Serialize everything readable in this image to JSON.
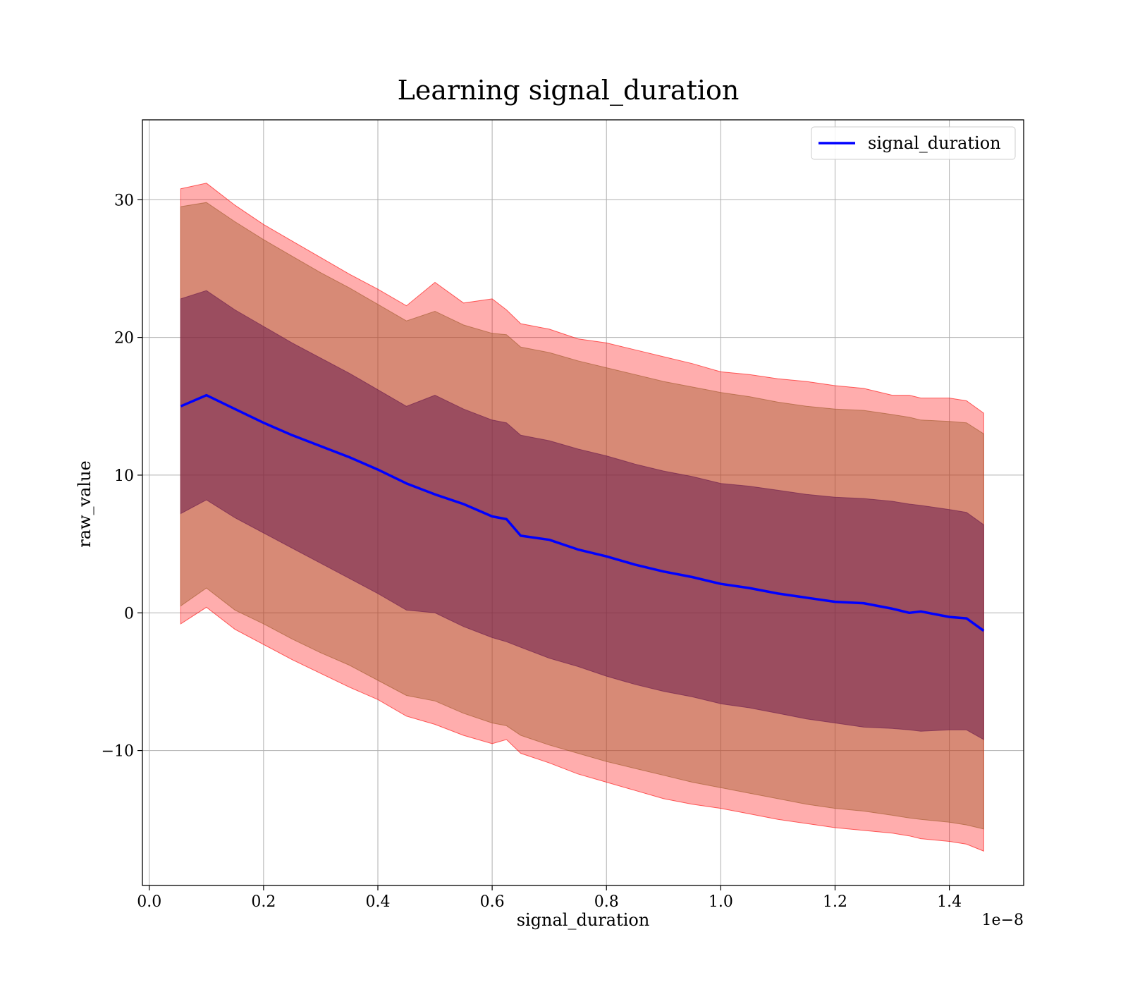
{
  "chart_data": {
    "type": "line",
    "title": "Learning signal_duration",
    "xlabel": "signal_duration",
    "ylabel": "raw_value",
    "x_offset_label": "1e−8",
    "xlim": [
      -0.012,
      1.53
    ],
    "ylim": [
      -19.8,
      35.8
    ],
    "x_ticks": [
      0.0,
      0.2,
      0.4,
      0.6,
      0.8,
      1.0,
      1.2,
      1.4
    ],
    "x_tick_labels": [
      "0.0",
      "0.2",
      "0.4",
      "0.6",
      "0.8",
      "1.0",
      "1.2",
      "1.4"
    ],
    "y_ticks": [
      -10,
      0,
      10,
      20,
      30
    ],
    "y_tick_labels": [
      "−10",
      "0",
      "10",
      "20",
      "30"
    ],
    "grid": true,
    "legend": {
      "position": "upper-right",
      "entries": [
        "signal_duration"
      ]
    },
    "colors": {
      "line": "#0000ff",
      "band_outer": "#ff0000",
      "band_middle": "#a05a2c",
      "band_inner": "#6a1b4d"
    },
    "x": [
      0.055,
      0.1,
      0.15,
      0.2,
      0.25,
      0.3,
      0.35,
      0.4,
      0.45,
      0.5,
      0.55,
      0.6,
      0.625,
      0.65,
      0.7,
      0.75,
      0.8,
      0.85,
      0.9,
      0.95,
      1.0,
      1.05,
      1.1,
      1.15,
      1.2,
      1.25,
      1.3,
      1.33,
      1.35,
      1.4,
      1.43,
      1.46
    ],
    "series": [
      {
        "name": "signal_duration",
        "values": [
          15.0,
          15.8,
          14.8,
          13.8,
          12.9,
          12.1,
          11.3,
          10.4,
          9.4,
          8.6,
          7.9,
          7.0,
          6.8,
          5.6,
          5.3,
          4.6,
          4.1,
          3.5,
          3.0,
          2.6,
          2.1,
          1.8,
          1.4,
          1.1,
          0.8,
          0.7,
          0.3,
          0.0,
          0.1,
          -0.3,
          -0.4,
          -1.3
        ]
      }
    ],
    "bands": [
      {
        "upper": [
          30.8,
          31.2,
          29.6,
          28.2,
          27.0,
          25.8,
          24.6,
          23.5,
          22.3,
          24.0,
          22.5,
          22.8,
          22.0,
          21.0,
          20.6,
          19.9,
          19.6,
          19.1,
          18.6,
          18.1,
          17.5,
          17.3,
          17.0,
          16.8,
          16.5,
          16.3,
          15.8,
          15.8,
          15.6,
          15.6,
          15.4,
          14.5
        ],
        "lower": [
          -0.8,
          0.4,
          -1.2,
          -2.3,
          -3.4,
          -4.4,
          -5.4,
          -6.3,
          -7.5,
          -8.1,
          -8.9,
          -9.5,
          -9.2,
          -10.2,
          -10.9,
          -11.7,
          -12.3,
          -12.9,
          -13.5,
          -13.9,
          -14.2,
          -14.6,
          -15.0,
          -15.3,
          -15.6,
          -15.8,
          -16.0,
          -16.2,
          -16.4,
          -16.6,
          -16.8,
          -17.3
        ]
      },
      {
        "upper": [
          29.5,
          29.8,
          28.4,
          27.1,
          25.9,
          24.7,
          23.6,
          22.4,
          21.2,
          21.9,
          20.9,
          20.3,
          20.2,
          19.3,
          18.9,
          18.3,
          17.8,
          17.3,
          16.8,
          16.4,
          16.0,
          15.7,
          15.3,
          15.0,
          14.8,
          14.7,
          14.4,
          14.2,
          14.0,
          13.9,
          13.8,
          13.0
        ],
        "lower": [
          0.5,
          1.8,
          0.2,
          -0.8,
          -1.9,
          -2.9,
          -3.8,
          -4.9,
          -6.0,
          -6.4,
          -7.3,
          -8.0,
          -8.2,
          -8.9,
          -9.6,
          -10.2,
          -10.8,
          -11.3,
          -11.8,
          -12.3,
          -12.7,
          -13.1,
          -13.5,
          -13.9,
          -14.2,
          -14.4,
          -14.7,
          -14.9,
          -15.0,
          -15.2,
          -15.4,
          -15.7
        ]
      },
      {
        "upper": [
          22.8,
          23.4,
          22.0,
          20.8,
          19.6,
          18.5,
          17.4,
          16.2,
          15.0,
          15.8,
          14.8,
          14.0,
          13.8,
          12.9,
          12.5,
          11.9,
          11.4,
          10.8,
          10.3,
          9.9,
          9.4,
          9.2,
          8.9,
          8.6,
          8.4,
          8.3,
          8.1,
          7.9,
          7.8,
          7.5,
          7.3,
          6.4
        ],
        "lower": [
          7.2,
          8.2,
          6.9,
          5.8,
          4.7,
          3.6,
          2.5,
          1.4,
          0.2,
          0.0,
          -1.0,
          -1.8,
          -2.1,
          -2.5,
          -3.3,
          -3.9,
          -4.6,
          -5.2,
          -5.7,
          -6.1,
          -6.6,
          -6.9,
          -7.3,
          -7.7,
          -8.0,
          -8.3,
          -8.4,
          -8.5,
          -8.6,
          -8.5,
          -8.5,
          -9.2
        ]
      }
    ]
  }
}
